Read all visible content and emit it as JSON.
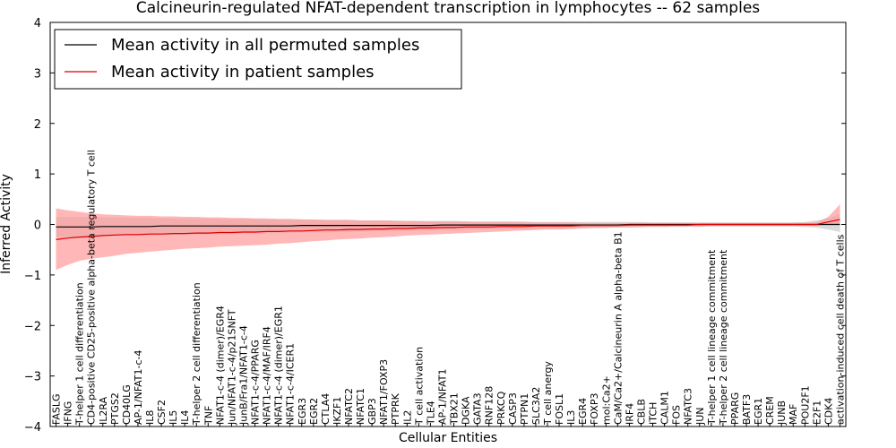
{
  "chart_data": {
    "type": "line",
    "title": "Calcineurin-regulated NFAT-dependent transcription in lymphocytes -- 62 samples",
    "xlabel": "Cellular Entities",
    "ylabel": "Inferred Activity",
    "ylim": [
      -4,
      4
    ],
    "yticks": [
      "4",
      "3",
      "2",
      "1",
      "0",
      "−1",
      "−2",
      "−3",
      "−4"
    ],
    "legend_placement": "top-left",
    "categories": [
      "FASLG",
      "IFNG",
      "T-helper 1 cell differentiation",
      "CD4-positive CD25-positive alpha-beta regulatory T cell",
      "IL2RA",
      "PTGS2",
      "CD40LG",
      "AP-1/NFAT1-c-4",
      "IL8",
      "CSF2",
      "IL5",
      "IL4",
      "T-helper 2 cell differentiation",
      "TNF",
      "NFAT1-c-4 (dimer)/EGR4",
      "Jun/NFAT1-c-4/p21SNFT",
      "JunB/Fra1/NFAT1-c-4",
      "NFAT1-c-4/PPARG",
      "NFAT1-c-4/MAF/IRF4",
      "NFAT1-c-4 (dimer)/EGR1",
      "NFAT1-c-4/ICER1",
      "EGR3",
      "EGR2",
      "CTLA4",
      "IKZF1",
      "NFATC2",
      "NFATC1",
      "GBP3",
      "NFAT1/FOXP3",
      "PTPRK",
      "IL2",
      "T cell activation",
      "TLE4",
      "AP-1/NFAT1",
      "TBX21",
      "DGKA",
      "GATA3",
      "RNF128",
      "PRKCQ",
      "CASP3",
      "PTPN1",
      "SLC3A2",
      "T cell anergy",
      "FOSL1",
      "IL3",
      "EGR4",
      "FOXP3",
      "mol:Ca2+",
      "CaM/Ca2+/Calcineurin A alpha-beta B1",
      "IRF4",
      "CBLB",
      "ITCH",
      "CALM1",
      "FOS",
      "NFATC3",
      "JUN",
      "T-helper 1 cell lineage commitment",
      "T-helper 2 cell lineage commitment",
      "PPARG",
      "BATF3",
      "EGR1",
      "CREM",
      "JUNB",
      "MAF",
      "POU2F1",
      "E2F1",
      "CDK4",
      "activation-induced cell death of T cells"
    ],
    "series": [
      {
        "name": "Mean activity in all permuted samples",
        "color": "#000000",
        "band_color": "#bbbbbb",
        "values": [
          -0.05,
          -0.05,
          -0.05,
          -0.05,
          -0.04,
          -0.04,
          -0.04,
          -0.04,
          -0.04,
          -0.03,
          -0.03,
          -0.03,
          -0.03,
          -0.03,
          -0.03,
          -0.03,
          -0.03,
          -0.03,
          -0.03,
          -0.03,
          -0.03,
          -0.02,
          -0.02,
          -0.02,
          -0.02,
          -0.02,
          -0.02,
          -0.02,
          -0.02,
          -0.02,
          -0.02,
          -0.02,
          -0.02,
          -0.01,
          -0.01,
          -0.01,
          -0.01,
          -0.01,
          -0.01,
          -0.01,
          -0.01,
          -0.01,
          -0.01,
          -0.01,
          -0.01,
          -0.01,
          -0.01,
          -0.01,
          -0.01,
          0.0,
          0.0,
          0.0,
          0.0,
          0.0,
          0.0,
          0.0,
          0.0,
          0.0,
          0.0,
          0.0,
          0.0,
          0.0,
          0.0,
          0.0,
          0.0,
          0.0,
          0.0,
          0.0
        ],
        "lower": [
          -0.25,
          -0.25,
          -0.25,
          -0.25,
          -0.23,
          -0.23,
          -0.22,
          -0.22,
          -0.22,
          -0.21,
          -0.21,
          -0.2,
          -0.2,
          -0.2,
          -0.19,
          -0.19,
          -0.18,
          -0.18,
          -0.18,
          -0.17,
          -0.17,
          -0.16,
          -0.16,
          -0.16,
          -0.15,
          -0.15,
          -0.14,
          -0.14,
          -0.13,
          -0.13,
          -0.13,
          -0.12,
          -0.12,
          -0.11,
          -0.11,
          -0.1,
          -0.1,
          -0.1,
          -0.09,
          -0.09,
          -0.09,
          -0.08,
          -0.08,
          -0.08,
          -0.07,
          -0.07,
          -0.07,
          -0.06,
          -0.06,
          -0.06,
          -0.06,
          -0.05,
          -0.05,
          -0.05,
          -0.05,
          -0.05,
          -0.04,
          -0.04,
          -0.04,
          -0.04,
          -0.04,
          -0.04,
          -0.04,
          -0.04,
          -0.05,
          -0.06,
          -0.1,
          -0.15
        ],
        "upper": [
          0.15,
          0.15,
          0.15,
          0.15,
          0.14,
          0.14,
          0.14,
          0.13,
          0.13,
          0.13,
          0.12,
          0.12,
          0.12,
          0.12,
          0.11,
          0.11,
          0.11,
          0.11,
          0.1,
          0.1,
          0.1,
          0.1,
          0.09,
          0.09,
          0.09,
          0.09,
          0.08,
          0.08,
          0.08,
          0.08,
          0.07,
          0.07,
          0.07,
          0.07,
          0.07,
          0.06,
          0.06,
          0.06,
          0.06,
          0.06,
          0.06,
          0.05,
          0.05,
          0.05,
          0.05,
          0.05,
          0.05,
          0.05,
          0.05,
          0.05,
          0.05,
          0.04,
          0.04,
          0.04,
          0.04,
          0.04,
          0.04,
          0.04,
          0.04,
          0.04,
          0.04,
          0.04,
          0.04,
          0.04,
          0.05,
          0.08,
          0.12,
          0.2
        ]
      },
      {
        "name": "Mean activity in patient samples",
        "color": "#dd0000",
        "band_color": "#ff9999",
        "values": [
          -0.3,
          -0.27,
          -0.25,
          -0.24,
          -0.22,
          -0.21,
          -0.2,
          -0.2,
          -0.19,
          -0.19,
          -0.18,
          -0.18,
          -0.17,
          -0.17,
          -0.16,
          -0.16,
          -0.15,
          -0.15,
          -0.14,
          -0.14,
          -0.13,
          -0.13,
          -0.12,
          -0.11,
          -0.11,
          -0.1,
          -0.1,
          -0.09,
          -0.09,
          -0.08,
          -0.08,
          -0.07,
          -0.07,
          -0.06,
          -0.06,
          -0.05,
          -0.05,
          -0.05,
          -0.04,
          -0.04,
          -0.04,
          -0.03,
          -0.03,
          -0.03,
          -0.03,
          -0.02,
          -0.02,
          -0.02,
          -0.02,
          -0.01,
          -0.01,
          -0.01,
          -0.01,
          -0.01,
          -0.01,
          0.0,
          0.0,
          0.0,
          0.0,
          0.0,
          0.0,
          0.0,
          0.0,
          0.0,
          0.0,
          0.0,
          0.05,
          0.1
        ],
        "lower": [
          -0.9,
          -0.8,
          -0.72,
          -0.68,
          -0.65,
          -0.62,
          -0.58,
          -0.56,
          -0.54,
          -0.52,
          -0.5,
          -0.48,
          -0.47,
          -0.46,
          -0.44,
          -0.43,
          -0.42,
          -0.41,
          -0.4,
          -0.38,
          -0.37,
          -0.35,
          -0.33,
          -0.32,
          -0.3,
          -0.29,
          -0.28,
          -0.26,
          -0.25,
          -0.24,
          -0.22,
          -0.21,
          -0.2,
          -0.19,
          -0.18,
          -0.17,
          -0.16,
          -0.15,
          -0.14,
          -0.13,
          -0.12,
          -0.11,
          -0.1,
          -0.1,
          -0.09,
          -0.08,
          -0.07,
          -0.07,
          -0.06,
          -0.06,
          -0.05,
          -0.05,
          -0.05,
          -0.04,
          -0.04,
          -0.04,
          -0.03,
          -0.03,
          -0.03,
          -0.03,
          -0.03,
          -0.03,
          -0.03,
          -0.03,
          -0.03,
          -0.03,
          0.0,
          0.0
        ],
        "upper": [
          0.32,
          0.28,
          0.25,
          0.22,
          0.2,
          0.19,
          0.18,
          0.17,
          0.17,
          0.16,
          0.16,
          0.15,
          0.15,
          0.14,
          0.14,
          0.13,
          0.13,
          0.12,
          0.12,
          0.11,
          0.11,
          0.1,
          0.1,
          0.09,
          0.09,
          0.09,
          0.08,
          0.08,
          0.08,
          0.07,
          0.07,
          0.07,
          0.06,
          0.06,
          0.06,
          0.06,
          0.05,
          0.05,
          0.05,
          0.05,
          0.04,
          0.04,
          0.04,
          0.04,
          0.04,
          0.03,
          0.03,
          0.03,
          0.03,
          0.03,
          0.03,
          0.03,
          0.03,
          0.03,
          0.03,
          0.03,
          0.03,
          0.03,
          0.03,
          0.03,
          0.03,
          0.03,
          0.03,
          0.03,
          0.03,
          0.04,
          0.15,
          0.4
        ]
      }
    ]
  }
}
